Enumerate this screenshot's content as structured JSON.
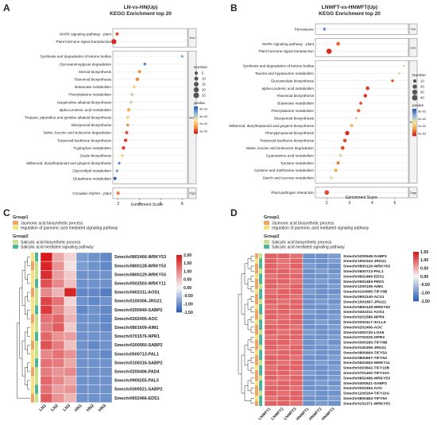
{
  "panels": {
    "A": {
      "letter": "A",
      "title1": "LN-vs-HN(Up)",
      "title2": "KEGG Enrichment top 20",
      "xlabel": "Enrichment Score",
      "xticks": [
        "2",
        "4",
        "6",
        "8"
      ],
      "xlim": [
        1.5,
        8.5
      ],
      "groups": [
        {
          "tag": "Envi",
          "terms": [
            "MAPK signaling pathway - plant",
            "Plant hormone signal transduction"
          ]
        },
        {
          "tag": "Meta",
          "terms": [
            "Synthesis and degradation of ketone bodies",
            "Glycosaminoglycan degradation",
            "Steroid biosynthesis",
            "Flavonoid biosynthesis",
            "Butanoate metabolism",
            "Phenylalanine metabolism",
            "Isoquinoline alkaloid biosynthesis",
            "alpha-Linolenic acid metabolism",
            "Tropane, piperidine and pyridine alkaloid biosynthesis",
            "Diterpenoid biosynthesis",
            "Valine, leucine and isoleucine degradation",
            "Terpenoid backbone biosynthesis",
            "Tryptophan metabolism",
            "Zeatin biosynthesis",
            "Stilbenoid, diarylheptanoid and gingerol biosynthesis",
            "Glycerolipid metabolism",
            "Glutathione metabolism"
          ]
        },
        {
          "tag": "Orga",
          "terms": [
            "Circadian rhythm - plant"
          ]
        }
      ],
      "legend_number_title": "Number",
      "legend_numbers": [
        "5",
        "10",
        "15",
        "20",
        "25"
      ],
      "legend_pvalue_title": "pvalue",
      "legend_pvalue_ticks": [
        "4e-02",
        "3e-02",
        "2e-02",
        "1e-02"
      ]
    },
    "B": {
      "letter": "B",
      "title1": "LNWFT-vs-HNWFT(Up)",
      "title2": "KEGG Enrichment top 20",
      "xlabel": "Enrichment Score",
      "xticks": [
        "2",
        "3",
        "4",
        "5"
      ],
      "xlim": [
        1.5,
        5.6
      ],
      "groups": [
        {
          "tag": "Cell",
          "terms": [
            "Peroxisome"
          ]
        },
        {
          "tag": "Envi",
          "terms": [
            "MAPK signaling pathway - plant",
            "Plant hormone signal transduction"
          ]
        },
        {
          "tag": "Meta",
          "terms": [
            "Synthesis and degradation of ketone bodies",
            "Taurine and hypotaurine metabolism",
            "Glucosinolate biosynthesis",
            "alpha-Linolenic acid metabolism",
            "Flavonoid biosynthesis",
            "Butanoate metabolism",
            "Phenylalanine metabolism",
            "Diterpenoid biosynthesis",
            "Stilbenoid, diarylheptanoid and gingerol biosynthesis",
            "Phenylpropanoid biosynthesis",
            "Terpenoid backbone biosynthesis",
            "Valine, leucine and isoleucine degradation",
            "Cyanoamino acid metabolism",
            "Tyrosine metabolism",
            "Cysteine and methionine metabolism",
            "Starch and sucrose metabolism"
          ]
        },
        {
          "tag": "Orga",
          "terms": [
            "Plant-pathogen interaction"
          ]
        }
      ],
      "legend_number_title": "Number",
      "legend_numbers": [
        "10",
        "20",
        "30",
        "40"
      ],
      "legend_pvalue_title": "pvalue",
      "legend_pvalue_ticks": [
        "3e-02",
        "2e-02",
        "1e-02",
        "4e-03"
      ]
    },
    "C": {
      "letter": "C",
      "group1_title": "Group1",
      "group1_items": [
        "Jasmonic acid biosynthetic process",
        "regulation of jasmonic acid mediated signaling pathway"
      ],
      "group2_title": "Group2",
      "group2_items": [
        "Salicylic acid biosynthetic process",
        "Salicylic acid mediated signaling pathway"
      ],
      "genes": [
        "Smechr0802466-WRKY53",
        "Smechr0800128-WRKY53",
        "Smechr0800129-WRKY53",
        "Smechr0502503-WRKY11",
        "Smechr0402311-AOS1",
        "Smechr0100306-JRG21",
        "Smechr0200949-SABP2",
        "Smechr0202405-AOC",
        "Smechr0801609-AIM1",
        "Smechr0701576-NPR1",
        "Smechr0200950-SABP2",
        "Smechr0500713-PAL1",
        "Smechr0100316-SABP2",
        "Smechr0200406-PAD4",
        "Smechr0900255-PAL5",
        "Smechr0300521-SABP2",
        "Smechr0602466-EDS1"
      ],
      "samples": [
        "LN1",
        "LN2",
        "LN3",
        "HN1",
        "HN2",
        "HN3"
      ],
      "colorbar_ticks": [
        "2.00",
        "1.50",
        "1.00",
        "0.50",
        "0.00",
        "-0.50",
        "-1.00",
        "-1.50"
      ]
    },
    "D": {
      "letter": "D",
      "group1_title": "Group1",
      "group1_items": [
        "Jasmonic acid biosynthetic process",
        "regulation of jasmonic acid mediated signaling pathway"
      ],
      "group2_title": "Group2",
      "group2_items": [
        "Salicylic acid biosynthetic process",
        "Salicylic acid mediated signaling pathway"
      ],
      "genes": [
        "Smechr0200949-SABP2",
        "Smechr1002343-JRG21",
        "Smechr0800129-WRKY53",
        "Smechr0500713-PAL1",
        "Smechr0602466-EDS1",
        "Smechr0902493-PED1",
        "Smechr1200106-AIM1",
        "Smechr0104065-TIFY6B",
        "Smechr0902140-ACX1",
        "Smechr1001697-JRG21",
        "Smechr0800128-WRKY53",
        "Smechr0402311-AOS1",
        "Smechr0201586-NPR4",
        "Smechr0202417-4CLL5",
        "Smechr0202406-AOC",
        "Smechr0300720-LOX6",
        "Smechr0700225-OPR3",
        "Smechr0300265-TIFY6B",
        "Smechr0100306-JRG21",
        "Smechr0800664-TIFY5A",
        "Smechr0800667-TIFY5A",
        "Smechr0502503-WRKY11",
        "Smechr0303642-TIFY10B",
        "Smechr0701400-TIFY10A",
        "Smechr0802466-WRKY53",
        "Smechr0300521-SABP2",
        "Smechr0202404-AOC",
        "Smechr1200204-TIFY10A",
        "Smechr0800463-TIFY5A",
        "Smechr0101371-WRKY53"
      ],
      "samples": [
        "LNWFT1",
        "LNWFT2",
        "LNWFT3",
        "HNWFT1",
        "HNWFT2",
        "HNWFT3"
      ],
      "colorbar_ticks": [
        "1.50",
        "1.00",
        "0.50",
        "0.00",
        "-0.50",
        "-1.00",
        "-1.50"
      ]
    }
  },
  "chart_data": [
    {
      "type": "scatter",
      "panel": "A",
      "title": "LN-vs-HN(Up) KEGG Enrichment top 20",
      "xlabel": "Enrichment Score",
      "xlim": [
        1.5,
        8.5
      ],
      "terms": [
        "MAPK signaling pathway - plant",
        "Plant hormone signal transduction",
        "Synthesis and degradation of ketone bodies",
        "Glycosaminoglycan degradation",
        "Steroid biosynthesis",
        "Flavonoid biosynthesis",
        "Butanoate metabolism",
        "Phenylalanine metabolism",
        "Isoquinoline alkaloid biosynthesis",
        "alpha-Linolenic acid metabolism",
        "Tropane, piperidine and pyridine alkaloid biosynthesis",
        "Diterpenoid biosynthesis",
        "Valine, leucine and isoleucine degradation",
        "Terpenoid backbone biosynthesis",
        "Tryptophan metabolism",
        "Zeatin biosynthesis",
        "Stilbenoid, diarylheptanoid and gingerol biosynthesis",
        "Glycerolipid metabolism",
        "Glutathione metabolism",
        "Circadian rhythm - plant"
      ],
      "x": [
        1.9,
        1.6,
        8.0,
        4.5,
        4.0,
        3.8,
        3.5,
        3.3,
        3.2,
        3.0,
        2.9,
        2.9,
        2.8,
        2.7,
        2.5,
        2.4,
        2.1,
        1.9,
        1.7,
        2.0
      ],
      "number": [
        5,
        18,
        2,
        3,
        4,
        7,
        3,
        6,
        4,
        7,
        3,
        3,
        5,
        6,
        6,
        3,
        2,
        3,
        5,
        6
      ],
      "pvalue": [
        0.005,
        0.001,
        0.04,
        0.045,
        0.01,
        0.01,
        0.02,
        0.03,
        0.03,
        0.015,
        0.02,
        0.01,
        0.005,
        0.003,
        0.003,
        0.02,
        0.045,
        0.04,
        0.05,
        0.01
      ]
    },
    {
      "type": "scatter",
      "panel": "B",
      "title": "LNWFT-vs-HNWFT(Up) KEGG Enrichment top 20",
      "xlabel": "Enrichment Score",
      "xlim": [
        1.5,
        5.6
      ],
      "terms": [
        "Peroxisome",
        "MAPK signaling pathway - plant",
        "Plant hormone signal transduction",
        "Synthesis and degradation of ketone bodies",
        "Taurine and hypotaurine metabolism",
        "Glucosinolate biosynthesis",
        "alpha-Linolenic acid metabolism",
        "Flavonoid biosynthesis",
        "Butanoate metabolism",
        "Phenylalanine metabolism",
        "Diterpenoid biosynthesis",
        "Stilbenoid, diarylheptanoid and gingerol biosynthesis",
        "Phenylpropanoid biosynthesis",
        "Terpenoid backbone biosynthesis",
        "Valine, leucine and isoleucine degradation",
        "Cyanoamino acid metabolism",
        "Tyrosine metabolism",
        "Cysteine and methionine metabolism",
        "Starch and sucrose metabolism",
        "Plant-pathogen interaction"
      ],
      "x": [
        1.9,
        2.5,
        2.1,
        5.4,
        5.2,
        4.9,
        3.8,
        3.7,
        3.5,
        3.4,
        3.3,
        3.1,
        2.9,
        2.8,
        2.7,
        2.6,
        2.5,
        2.4,
        2.2,
        2.0
      ],
      "number": [
        6,
        14,
        35,
        3,
        3,
        4,
        13,
        11,
        6,
        10,
        4,
        6,
        20,
        12,
        14,
        8,
        8,
        10,
        7,
        24
      ],
      "pvalue": [
        0.03,
        0.005,
        0.001,
        0.02,
        0.02,
        0.003,
        0.002,
        0.001,
        0.003,
        0.005,
        0.02,
        0.01,
        0.001,
        0.003,
        0.003,
        0.02,
        0.006,
        0.01,
        0.02,
        0.003
      ]
    },
    {
      "type": "heatmap",
      "panel": "C",
      "rows": [
        "Smechr0802466-WRKY53",
        "Smechr0800128-WRKY53",
        "Smechr0800129-WRKY53",
        "Smechr0502503-WRKY11",
        "Smechr0402311-AOS1",
        "Smechr0100306-JRG21",
        "Smechr0200949-SABP2",
        "Smechr0202405-AOC",
        "Smechr0801609-AIM1",
        "Smechr0701576-NPR1",
        "Smechr0200950-SABP2",
        "Smechr0500713-PAL1",
        "Smechr0100316-SABP2",
        "Smechr0200406-PAD4",
        "Smechr0900255-PAL5",
        "Smechr0300521-SABP2",
        "Smechr0602466-EDS1"
      ],
      "columns": [
        "LN1",
        "LN2",
        "LN3",
        "HN1",
        "HN2",
        "HN3"
      ],
      "values": [
        [
          2.0,
          0.7,
          0.3,
          -0.9,
          -1.0,
          -1.1
        ],
        [
          1.9,
          0.9,
          0.2,
          -0.9,
          -1.0,
          -1.1
        ],
        [
          1.8,
          0.8,
          0.4,
          -1.0,
          -1.0,
          -1.0
        ],
        [
          1.5,
          1.0,
          0.5,
          -1.0,
          -1.0,
          -1.0
        ],
        [
          1.0,
          0.6,
          1.9,
          -1.1,
          -1.1,
          -1.2
        ],
        [
          1.6,
          1.2,
          0.3,
          -1.0,
          -1.1,
          -1.0
        ],
        [
          1.7,
          1.0,
          0.5,
          -1.1,
          -1.0,
          -1.1
        ],
        [
          1.2,
          1.3,
          0.6,
          -1.0,
          -1.0,
          -1.1
        ],
        [
          1.1,
          1.4,
          0.4,
          -1.0,
          -1.0,
          -1.1
        ],
        [
          1.3,
          0.9,
          0.8,
          -1.0,
          -1.0,
          -1.0
        ],
        [
          1.5,
          1.1,
          0.5,
          -1.0,
          -1.1,
          -1.0
        ],
        [
          1.0,
          1.2,
          0.9,
          -1.0,
          -1.0,
          -1.1
        ],
        [
          1.2,
          1.1,
          0.7,
          -1.0,
          -1.0,
          -1.0
        ],
        [
          1.1,
          0.9,
          1.0,
          -1.0,
          -1.0,
          -1.0
        ],
        [
          1.3,
          1.0,
          0.7,
          -1.0,
          -1.0,
          -1.0
        ],
        [
          1.2,
          0.8,
          0.9,
          -1.0,
          -1.0,
          -1.0
        ],
        [
          1.4,
          0.9,
          0.6,
          -1.0,
          -1.0,
          -1.0
        ]
      ],
      "vmin": -1.5,
      "vmax": 2.0
    },
    {
      "type": "heatmap",
      "panel": "D",
      "rows": [
        "Smechr0200949-SABP2",
        "Smechr1002343-JRG21",
        "Smechr0800129-WRKY53",
        "Smechr0500713-PAL1",
        "Smechr0602466-EDS1",
        "Smechr0902493-PED1",
        "Smechr1200106-AIM1",
        "Smechr0104065-TIFY6B",
        "Smechr0902140-ACX1",
        "Smechr1001697-JRG21",
        "Smechr0800128-WRKY53",
        "Smechr0402311-AOS1",
        "Smechr0201586-NPR4",
        "Smechr0202417-4CLL5",
        "Smechr0202406-AOC",
        "Smechr0300720-LOX6",
        "Smechr0700225-OPR3",
        "Smechr0300265-TIFY6B",
        "Smechr0100306-JRG21",
        "Smechr0800664-TIFY5A",
        "Smechr0800667-TIFY5A",
        "Smechr0502503-WRKY11",
        "Smechr0303642-TIFY10B",
        "Smechr0701400-TIFY10A",
        "Smechr0802466-WRKY53",
        "Smechr0300521-SABP2",
        "Smechr0202404-AOC",
        "Smechr1200204-TIFY10A",
        "Smechr0800463-TIFY5A",
        "Smechr0101371-WRKY53"
      ],
      "columns": [
        "LNWFT1",
        "LNWFT2",
        "LNWFT3",
        "HNWFT1",
        "HNWFT2",
        "HNWFT3"
      ],
      "values": [
        [
          1.0,
          1.0,
          0.9,
          -1.0,
          -1.0,
          -0.9
        ],
        [
          1.0,
          0.9,
          1.0,
          -1.0,
          -1.0,
          -0.9
        ],
        [
          1.0,
          0.9,
          1.0,
          -0.9,
          -1.0,
          -1.0
        ],
        [
          1.0,
          1.0,
          0.9,
          -1.0,
          -0.9,
          -1.0
        ],
        [
          0.9,
          1.0,
          1.0,
          -1.0,
          -1.0,
          -0.9
        ],
        [
          1.0,
          1.0,
          0.9,
          -1.0,
          -0.9,
          -1.0
        ],
        [
          1.0,
          0.9,
          1.0,
          -1.0,
          -1.0,
          -0.9
        ],
        [
          0.9,
          1.0,
          1.0,
          -0.9,
          -1.0,
          -1.0
        ],
        [
          1.0,
          1.0,
          0.9,
          -1.0,
          -1.0,
          -0.9
        ],
        [
          1.0,
          0.9,
          1.0,
          -1.0,
          -0.9,
          -1.0
        ],
        [
          0.9,
          1.0,
          1.0,
          -1.0,
          -1.0,
          -0.9
        ],
        [
          1.0,
          1.0,
          0.9,
          -0.9,
          -1.0,
          -1.0
        ],
        [
          1.0,
          0.9,
          1.0,
          -1.0,
          -1.0,
          -0.9
        ],
        [
          0.9,
          1.0,
          1.0,
          -1.0,
          -0.9,
          -1.0
        ],
        [
          1.0,
          1.0,
          0.9,
          -1.0,
          -1.0,
          -0.9
        ],
        [
          1.0,
          0.9,
          1.0,
          -0.9,
          -1.0,
          -1.0
        ],
        [
          0.9,
          1.0,
          1.0,
          -1.0,
          -1.0,
          -0.9
        ],
        [
          1.0,
          1.0,
          0.9,
          -1.0,
          -0.9,
          -1.0
        ],
        [
          1.0,
          0.9,
          1.0,
          -1.0,
          -1.0,
          -0.9
        ],
        [
          0.9,
          1.0,
          1.0,
          -0.9,
          -1.0,
          -1.0
        ],
        [
          1.0,
          1.0,
          0.9,
          -1.0,
          -1.0,
          -0.9
        ],
        [
          1.0,
          0.9,
          1.0,
          -1.0,
          -0.9,
          -1.0
        ],
        [
          0.9,
          1.0,
          1.0,
          -1.0,
          -1.0,
          -0.9
        ],
        [
          1.0,
          1.0,
          0.9,
          -0.9,
          -1.0,
          -1.0
        ],
        [
          1.0,
          0.9,
          1.0,
          -1.0,
          -1.0,
          -0.9
        ],
        [
          0.9,
          1.0,
          1.0,
          -1.0,
          -0.9,
          -1.0
        ],
        [
          1.0,
          1.0,
          0.9,
          -1.0,
          -1.0,
          -0.9
        ],
        [
          1.0,
          0.9,
          1.0,
          -0.9,
          -1.0,
          -1.0
        ],
        [
          0.9,
          1.0,
          1.0,
          -1.0,
          -1.0,
          -0.9
        ],
        [
          1.0,
          1.0,
          0.9,
          -1.0,
          -0.9,
          -1.0
        ]
      ],
      "vmin": -1.5,
      "vmax": 1.5
    }
  ],
  "colors": {
    "group1_jasmonic_biosynthesis": "#f4a261",
    "group1_jasmonic_regulation": "#f6e27a",
    "group2_salicylic_biosynthesis": "#c9df8a",
    "group2_salicylic_signaling": "#4fb39a",
    "heat_high": "#d7191c",
    "heat_mid": "#f7f7f7",
    "heat_low": "#2c5fb5"
  }
}
